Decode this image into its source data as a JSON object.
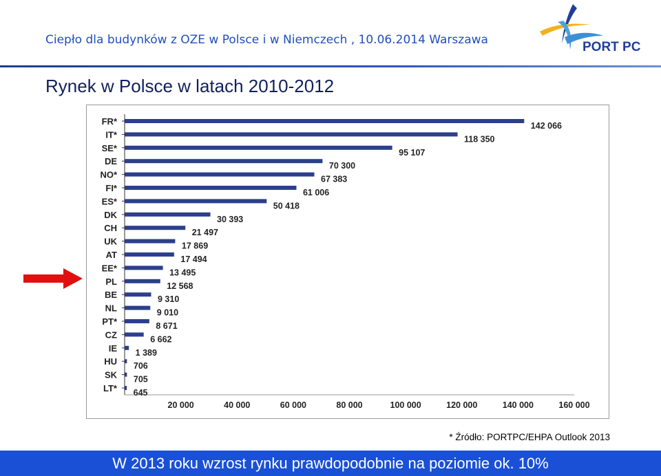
{
  "header": {
    "title": "Ciepło dla budynków z OZE w Polsce i w Niemczech , 10.06.2014 Warszawa",
    "logo_text": "PORT PC"
  },
  "slide": {
    "title": "Rynek w Polsce w latach 2010-2012",
    "source": "* Źródło: PORTPC/EHPA Outlook 2013",
    "bottom_banner": "W 2013 roku wzrost rynku prawdopodobnie na poziomie ok. 10%"
  },
  "colors": {
    "bar": "#2b3f8c",
    "header_text": "#1f4fbf",
    "banner": "#1a50d6",
    "arrow": "#e01010"
  },
  "chart_data": {
    "type": "bar",
    "orientation": "horizontal",
    "categories": [
      "FR*",
      "IT*",
      "SE*",
      "DE",
      "NO*",
      "FI*",
      "ES*",
      "DK",
      "CH",
      "UK",
      "AT",
      "EE*",
      "PL",
      "BE",
      "NL",
      "PT*",
      "CZ",
      "IE",
      "HU",
      "SK",
      "LT*"
    ],
    "values": [
      142066,
      118350,
      95107,
      70300,
      67383,
      61006,
      50418,
      30393,
      21497,
      17869,
      17494,
      13495,
      12568,
      9310,
      9010,
      8671,
      6662,
      1389,
      706,
      705,
      645
    ],
    "value_labels": [
      "142 066",
      "118 350",
      "95 107",
      "70 300",
      "67 383",
      "61 006",
      "50 418",
      "30 393",
      "21 497",
      "17 869",
      "17 494",
      "13 495",
      "12 568",
      "9 310",
      "9 010",
      "8 671",
      "6 662",
      "1 389",
      "706",
      "705",
      "645"
    ],
    "xlim": [
      0,
      160000
    ],
    "xticks": [
      20000,
      40000,
      60000,
      80000,
      100000,
      120000,
      140000,
      160000
    ],
    "xtick_labels": [
      "20 000",
      "40 000",
      "60 000",
      "80 000",
      "100 000",
      "120 000",
      "140 000",
      "160 000"
    ],
    "highlight_category": "PL",
    "grid": false
  }
}
